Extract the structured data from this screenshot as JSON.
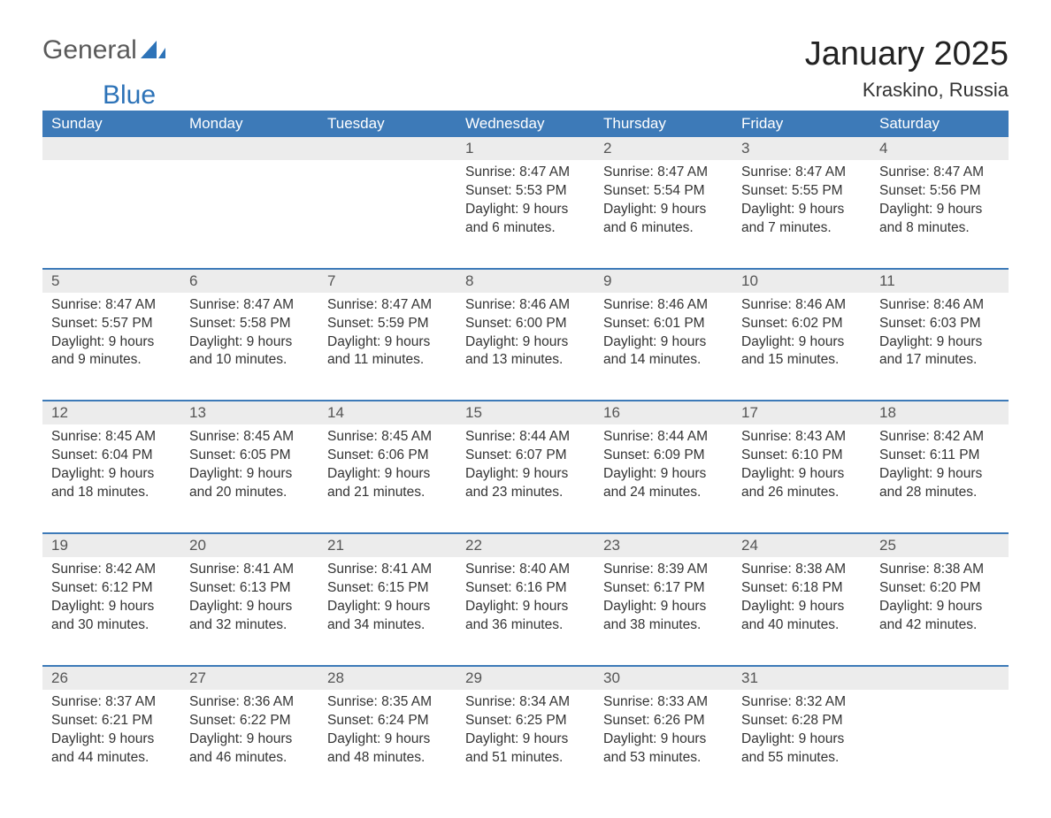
{
  "logo": {
    "text_general": "General",
    "text_blue": "Blue"
  },
  "title": "January 2025",
  "location": "Kraskino, Russia",
  "colors": {
    "header_bg": "#3d7ab8",
    "header_text": "#ffffff",
    "daynum_bg": "#ececec",
    "daynum_text": "#555555",
    "body_text": "#333333",
    "week_border": "#3d7ab8",
    "page_bg": "#ffffff",
    "logo_gray": "#5a5a5a",
    "logo_blue": "#2d73b8"
  },
  "typography": {
    "title_fontsize": 38,
    "location_fontsize": 22,
    "dayheader_fontsize": 17,
    "daynum_fontsize": 17,
    "content_fontsize": 15.5,
    "logo_fontsize": 30
  },
  "day_headers": [
    "Sunday",
    "Monday",
    "Tuesday",
    "Wednesday",
    "Thursday",
    "Friday",
    "Saturday"
  ],
  "weeks": [
    [
      {
        "n": "",
        "sunrise": "",
        "sunset": "",
        "daylight": ""
      },
      {
        "n": "",
        "sunrise": "",
        "sunset": "",
        "daylight": ""
      },
      {
        "n": "",
        "sunrise": "",
        "sunset": "",
        "daylight": ""
      },
      {
        "n": "1",
        "sunrise": "Sunrise: 8:47 AM",
        "sunset": "Sunset: 5:53 PM",
        "daylight": "Daylight: 9 hours and 6 minutes."
      },
      {
        "n": "2",
        "sunrise": "Sunrise: 8:47 AM",
        "sunset": "Sunset: 5:54 PM",
        "daylight": "Daylight: 9 hours and 6 minutes."
      },
      {
        "n": "3",
        "sunrise": "Sunrise: 8:47 AM",
        "sunset": "Sunset: 5:55 PM",
        "daylight": "Daylight: 9 hours and 7 minutes."
      },
      {
        "n": "4",
        "sunrise": "Sunrise: 8:47 AM",
        "sunset": "Sunset: 5:56 PM",
        "daylight": "Daylight: 9 hours and 8 minutes."
      }
    ],
    [
      {
        "n": "5",
        "sunrise": "Sunrise: 8:47 AM",
        "sunset": "Sunset: 5:57 PM",
        "daylight": "Daylight: 9 hours and 9 minutes."
      },
      {
        "n": "6",
        "sunrise": "Sunrise: 8:47 AM",
        "sunset": "Sunset: 5:58 PM",
        "daylight": "Daylight: 9 hours and 10 minutes."
      },
      {
        "n": "7",
        "sunrise": "Sunrise: 8:47 AM",
        "sunset": "Sunset: 5:59 PM",
        "daylight": "Daylight: 9 hours and 11 minutes."
      },
      {
        "n": "8",
        "sunrise": "Sunrise: 8:46 AM",
        "sunset": "Sunset: 6:00 PM",
        "daylight": "Daylight: 9 hours and 13 minutes."
      },
      {
        "n": "9",
        "sunrise": "Sunrise: 8:46 AM",
        "sunset": "Sunset: 6:01 PM",
        "daylight": "Daylight: 9 hours and 14 minutes."
      },
      {
        "n": "10",
        "sunrise": "Sunrise: 8:46 AM",
        "sunset": "Sunset: 6:02 PM",
        "daylight": "Daylight: 9 hours and 15 minutes."
      },
      {
        "n": "11",
        "sunrise": "Sunrise: 8:46 AM",
        "sunset": "Sunset: 6:03 PM",
        "daylight": "Daylight: 9 hours and 17 minutes."
      }
    ],
    [
      {
        "n": "12",
        "sunrise": "Sunrise: 8:45 AM",
        "sunset": "Sunset: 6:04 PM",
        "daylight": "Daylight: 9 hours and 18 minutes."
      },
      {
        "n": "13",
        "sunrise": "Sunrise: 8:45 AM",
        "sunset": "Sunset: 6:05 PM",
        "daylight": "Daylight: 9 hours and 20 minutes."
      },
      {
        "n": "14",
        "sunrise": "Sunrise: 8:45 AM",
        "sunset": "Sunset: 6:06 PM",
        "daylight": "Daylight: 9 hours and 21 minutes."
      },
      {
        "n": "15",
        "sunrise": "Sunrise: 8:44 AM",
        "sunset": "Sunset: 6:07 PM",
        "daylight": "Daylight: 9 hours and 23 minutes."
      },
      {
        "n": "16",
        "sunrise": "Sunrise: 8:44 AM",
        "sunset": "Sunset: 6:09 PM",
        "daylight": "Daylight: 9 hours and 24 minutes."
      },
      {
        "n": "17",
        "sunrise": "Sunrise: 8:43 AM",
        "sunset": "Sunset: 6:10 PM",
        "daylight": "Daylight: 9 hours and 26 minutes."
      },
      {
        "n": "18",
        "sunrise": "Sunrise: 8:42 AM",
        "sunset": "Sunset: 6:11 PM",
        "daylight": "Daylight: 9 hours and 28 minutes."
      }
    ],
    [
      {
        "n": "19",
        "sunrise": "Sunrise: 8:42 AM",
        "sunset": "Sunset: 6:12 PM",
        "daylight": "Daylight: 9 hours and 30 minutes."
      },
      {
        "n": "20",
        "sunrise": "Sunrise: 8:41 AM",
        "sunset": "Sunset: 6:13 PM",
        "daylight": "Daylight: 9 hours and 32 minutes."
      },
      {
        "n": "21",
        "sunrise": "Sunrise: 8:41 AM",
        "sunset": "Sunset: 6:15 PM",
        "daylight": "Daylight: 9 hours and 34 minutes."
      },
      {
        "n": "22",
        "sunrise": "Sunrise: 8:40 AM",
        "sunset": "Sunset: 6:16 PM",
        "daylight": "Daylight: 9 hours and 36 minutes."
      },
      {
        "n": "23",
        "sunrise": "Sunrise: 8:39 AM",
        "sunset": "Sunset: 6:17 PM",
        "daylight": "Daylight: 9 hours and 38 minutes."
      },
      {
        "n": "24",
        "sunrise": "Sunrise: 8:38 AM",
        "sunset": "Sunset: 6:18 PM",
        "daylight": "Daylight: 9 hours and 40 minutes."
      },
      {
        "n": "25",
        "sunrise": "Sunrise: 8:38 AM",
        "sunset": "Sunset: 6:20 PM",
        "daylight": "Daylight: 9 hours and 42 minutes."
      }
    ],
    [
      {
        "n": "26",
        "sunrise": "Sunrise: 8:37 AM",
        "sunset": "Sunset: 6:21 PM",
        "daylight": "Daylight: 9 hours and 44 minutes."
      },
      {
        "n": "27",
        "sunrise": "Sunrise: 8:36 AM",
        "sunset": "Sunset: 6:22 PM",
        "daylight": "Daylight: 9 hours and 46 minutes."
      },
      {
        "n": "28",
        "sunrise": "Sunrise: 8:35 AM",
        "sunset": "Sunset: 6:24 PM",
        "daylight": "Daylight: 9 hours and 48 minutes."
      },
      {
        "n": "29",
        "sunrise": "Sunrise: 8:34 AM",
        "sunset": "Sunset: 6:25 PM",
        "daylight": "Daylight: 9 hours and 51 minutes."
      },
      {
        "n": "30",
        "sunrise": "Sunrise: 8:33 AM",
        "sunset": "Sunset: 6:26 PM",
        "daylight": "Daylight: 9 hours and 53 minutes."
      },
      {
        "n": "31",
        "sunrise": "Sunrise: 8:32 AM",
        "sunset": "Sunset: 6:28 PM",
        "daylight": "Daylight: 9 hours and 55 minutes."
      },
      {
        "n": "",
        "sunrise": "",
        "sunset": "",
        "daylight": ""
      }
    ]
  ]
}
